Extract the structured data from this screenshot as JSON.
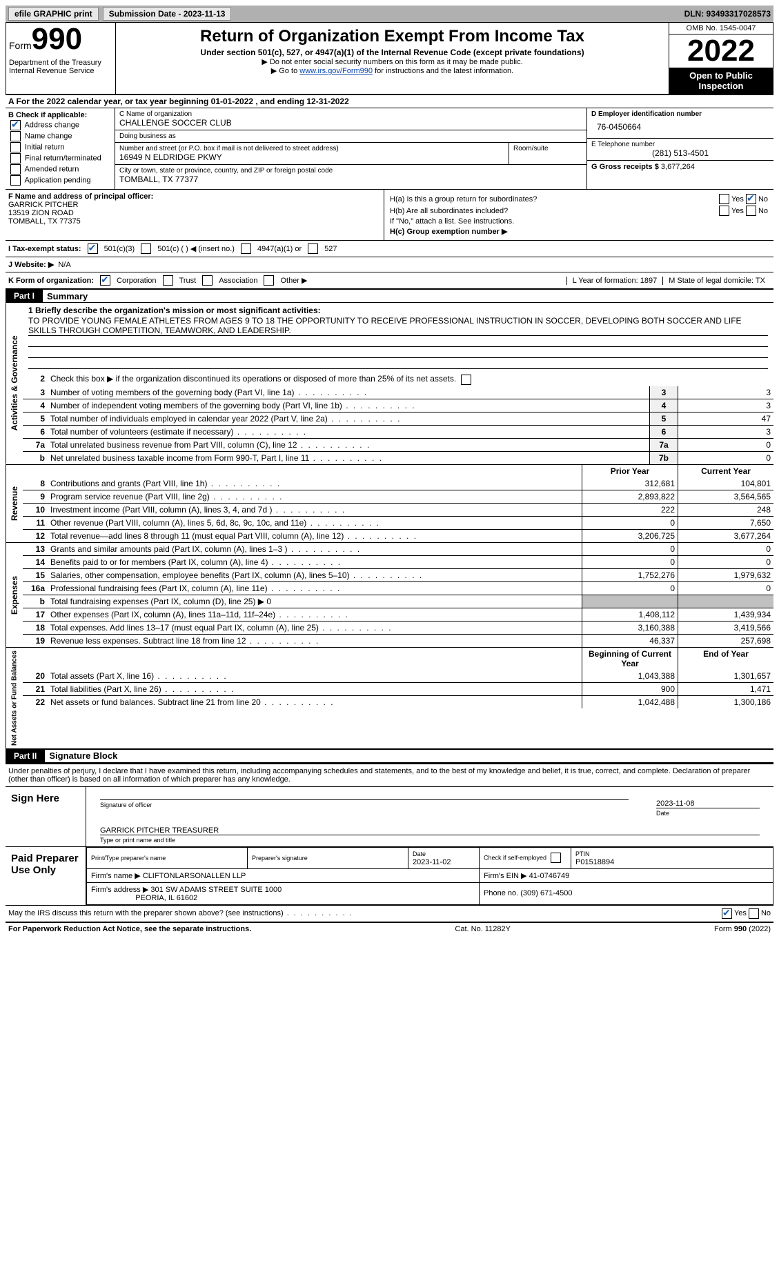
{
  "topbar": {
    "efile": "efile GRAPHIC print",
    "submission": "Submission Date - 2023-11-13",
    "dln": "DLN: 93493317028573"
  },
  "header": {
    "form_label": "Form",
    "form_number": "990",
    "dept": "Department of the Treasury\nInternal Revenue Service",
    "title": "Return of Organization Exempt From Income Tax",
    "subtitle": "Under section 501(c), 527, or 4947(a)(1) of the Internal Revenue Code (except private foundations)",
    "note1": "▶ Do not enter social security numbers on this form as it may be made public.",
    "note2_prefix": "▶ Go to ",
    "note2_link": "www.irs.gov/Form990",
    "note2_suffix": " for instructions and the latest information.",
    "omb": "OMB No. 1545-0047",
    "year": "2022",
    "open": "Open to Public Inspection"
  },
  "lineA": "A For the 2022 calendar year, or tax year beginning 01-01-2022    , and ending 12-31-2022",
  "boxB": {
    "label": "B Check if applicable:",
    "items": [
      {
        "label": "Address change",
        "checked": true
      },
      {
        "label": "Name change",
        "checked": false
      },
      {
        "label": "Initial return",
        "checked": false
      },
      {
        "label": "Final return/terminated",
        "checked": false
      },
      {
        "label": "Amended return",
        "checked": false
      },
      {
        "label": "Application pending",
        "checked": false
      }
    ]
  },
  "boxC": {
    "name_label": "C Name of organization",
    "name": "CHALLENGE SOCCER CLUB",
    "dba_label": "Doing business as",
    "dba": "",
    "street_label": "Number and street (or P.O. box if mail is not delivered to street address)",
    "street": "16949 N ELDRIDGE PKWY",
    "room_label": "Room/suite",
    "room": "",
    "city_label": "City or town, state or province, country, and ZIP or foreign postal code",
    "city": "TOMBALL, TX  77377"
  },
  "boxD": {
    "label": "D Employer identification number",
    "value": "76-0450664"
  },
  "boxE": {
    "label": "E Telephone number",
    "value": "(281) 513-4501"
  },
  "boxG": {
    "label": "G Gross receipts $",
    "value": "3,677,264"
  },
  "boxF": {
    "label": "F  Name and address of principal officer:",
    "line1": "GARRICK PITCHER",
    "line2": "13519 ZION ROAD",
    "line3": "TOMBALL, TX  77375"
  },
  "boxH": {
    "ha": "H(a)  Is this a group return for subordinates?",
    "ha_yes": false,
    "ha_no": true,
    "hb": "H(b)  Are all subordinates included?",
    "hb_note": "If \"No,\" attach a list. See instructions.",
    "hc": "H(c)  Group exemption number ▶"
  },
  "taxStatus": {
    "label": "I   Tax-exempt status:",
    "c501c3": true,
    "opts": [
      "501(c)(3)",
      "501(c) (  ) ◀ (insert no.)",
      "4947(a)(1) or",
      "527"
    ]
  },
  "website": {
    "label": "J  Website: ▶",
    "value": "N/A"
  },
  "boxK": {
    "label": "K Form of organization:",
    "corp": true,
    "opts": [
      "Corporation",
      "Trust",
      "Association",
      "Other ▶"
    ],
    "L": "L Year of formation: 1897",
    "M": "M State of legal domicile: TX"
  },
  "part1": {
    "header": "Part I",
    "title": "Summary",
    "mission_label": "1   Briefly describe the organization's mission or most significant activities:",
    "mission": "TO PROVIDE YOUNG FEMALE ATHLETES FROM AGES 9 TO 18 THE OPPORTUNITY TO RECEIVE PROFESSIONAL INSTRUCTION IN SOCCER, DEVELOPING BOTH SOCCER AND LIFE SKILLS THROUGH COMPETITION, TEAMWORK, AND LEADERSHIP."
  },
  "governance": {
    "line2": "Check this box ▶    if the organization discontinued its operations or disposed of more than 25% of its net assets.",
    "rows": [
      {
        "n": "3",
        "desc": "Number of voting members of the governing body (Part VI, line 1a)",
        "box": "3",
        "val": "3"
      },
      {
        "n": "4",
        "desc": "Number of independent voting members of the governing body (Part VI, line 1b)",
        "box": "4",
        "val": "3"
      },
      {
        "n": "5",
        "desc": "Total number of individuals employed in calendar year 2022 (Part V, line 2a)",
        "box": "5",
        "val": "47"
      },
      {
        "n": "6",
        "desc": "Total number of volunteers (estimate if necessary)",
        "box": "6",
        "val": "3"
      },
      {
        "n": "7a",
        "desc": "Total unrelated business revenue from Part VIII, column (C), line 12",
        "box": "7a",
        "val": "0"
      },
      {
        "n": "b",
        "desc": "Net unrelated business taxable income from Form 990-T, Part I, line 11",
        "box": "7b",
        "val": "0"
      }
    ]
  },
  "revenue": {
    "head_prior": "Prior Year",
    "head_current": "Current Year",
    "rows": [
      {
        "n": "8",
        "desc": "Contributions and grants (Part VIII, line 1h)",
        "prior": "312,681",
        "curr": "104,801"
      },
      {
        "n": "9",
        "desc": "Program service revenue (Part VIII, line 2g)",
        "prior": "2,893,822",
        "curr": "3,564,565"
      },
      {
        "n": "10",
        "desc": "Investment income (Part VIII, column (A), lines 3, 4, and 7d )",
        "prior": "222",
        "curr": "248"
      },
      {
        "n": "11",
        "desc": "Other revenue (Part VIII, column (A), lines 5, 6d, 8c, 9c, 10c, and 11e)",
        "prior": "0",
        "curr": "7,650"
      },
      {
        "n": "12",
        "desc": "Total revenue—add lines 8 through 11 (must equal Part VIII, column (A), line 12)",
        "prior": "3,206,725",
        "curr": "3,677,264"
      }
    ]
  },
  "expenses": {
    "rows": [
      {
        "n": "13",
        "desc": "Grants and similar amounts paid (Part IX, column (A), lines 1–3 )",
        "prior": "0",
        "curr": "0"
      },
      {
        "n": "14",
        "desc": "Benefits paid to or for members (Part IX, column (A), line 4)",
        "prior": "0",
        "curr": "0"
      },
      {
        "n": "15",
        "desc": "Salaries, other compensation, employee benefits (Part IX, column (A), lines 5–10)",
        "prior": "1,752,276",
        "curr": "1,979,632"
      },
      {
        "n": "16a",
        "desc": "Professional fundraising fees (Part IX, column (A), line 11e)",
        "prior": "0",
        "curr": "0"
      },
      {
        "n": "b",
        "desc": "Total fundraising expenses (Part IX, column (D), line 25) ▶ 0",
        "prior": "",
        "curr": "",
        "grey": true
      },
      {
        "n": "17",
        "desc": "Other expenses (Part IX, column (A), lines 11a–11d, 11f–24e)",
        "prior": "1,408,112",
        "curr": "1,439,934"
      },
      {
        "n": "18",
        "desc": "Total expenses. Add lines 13–17 (must equal Part IX, column (A), line 25)",
        "prior": "3,160,388",
        "curr": "3,419,566"
      },
      {
        "n": "19",
        "desc": "Revenue less expenses. Subtract line 18 from line 12",
        "prior": "46,337",
        "curr": "257,698"
      }
    ]
  },
  "netassets": {
    "head_begin": "Beginning of Current Year",
    "head_end": "End of Year",
    "rows": [
      {
        "n": "20",
        "desc": "Total assets (Part X, line 16)",
        "prior": "1,043,388",
        "curr": "1,301,657"
      },
      {
        "n": "21",
        "desc": "Total liabilities (Part X, line 26)",
        "prior": "900",
        "curr": "1,471"
      },
      {
        "n": "22",
        "desc": "Net assets or fund balances. Subtract line 21 from line 20",
        "prior": "1,042,488",
        "curr": "1,300,186"
      }
    ]
  },
  "part2": {
    "header": "Part II",
    "title": "Signature Block",
    "disclaimer": "Under penalties of perjury, I declare that I have examined this return, including accompanying schedules and statements, and to the best of my knowledge and belief, it is true, correct, and complete. Declaration of preparer (other than officer) is based on all information of which preparer has any knowledge.",
    "sign_here": "Sign Here",
    "sig_officer": "Signature of officer",
    "sig_date": "2023-11-08",
    "sig_date_lbl": "Date",
    "officer_name": "GARRICK PITCHER  TREASURER",
    "officer_caption": "Type or print name and title",
    "paid": "Paid Preparer Use Only",
    "prep_name_lbl": "Print/Type preparer's name",
    "prep_sig_lbl": "Preparer's signature",
    "prep_date_lbl": "Date",
    "prep_date": "2023-11-02",
    "prep_check": "Check        if self-employed",
    "ptin_lbl": "PTIN",
    "ptin": "P01518894",
    "firm_name_lbl": "Firm's name      ▶",
    "firm_name": "CLIFTONLARSONALLEN LLP",
    "firm_ein_lbl": "Firm's EIN ▶",
    "firm_ein": "41-0746749",
    "firm_addr_lbl": "Firm's address ▶",
    "firm_addr1": "301 SW ADAMS STREET SUITE 1000",
    "firm_addr2": "PEORIA, IL  61602",
    "phone_lbl": "Phone no.",
    "phone": "(309) 671-4500",
    "irs_discuss": "May the IRS discuss this return with the preparer shown above? (see instructions)",
    "irs_yes": true
  },
  "footer": {
    "left": "For Paperwork Reduction Act Notice, see the separate instructions.",
    "mid": "Cat. No. 11282Y",
    "right": "Form 990 (2022)"
  }
}
